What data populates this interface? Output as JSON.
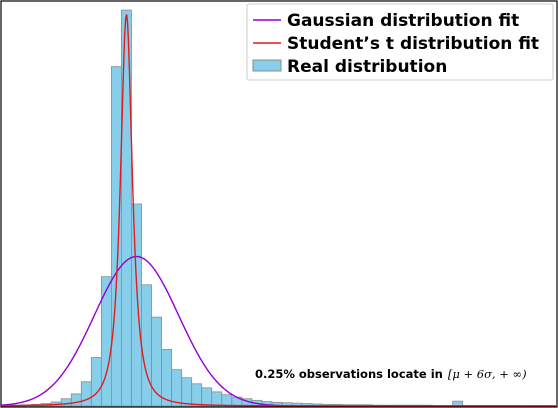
{
  "chart_data": {
    "type": "bar",
    "title": "",
    "xlabel": "",
    "ylabel": "",
    "grid": false,
    "legend_placement": "top-right",
    "colors": {
      "bar_fill": "#87ceeb",
      "bar_edge": "#8c8c8c",
      "gaussian": "#9400d3",
      "student_t": "#e41a1c",
      "frame": "#000000"
    },
    "legend": [
      {
        "key": "gaussian",
        "label": "Gaussian distribution fit"
      },
      {
        "key": "student_t",
        "label": "Student’s t distribution fit"
      },
      {
        "key": "real",
        "label": "Real distribution"
      }
    ],
    "x_range": [
      -6.2,
      21.4
    ],
    "y_range": [
      0,
      1.0
    ],
    "bin_width": 0.5,
    "bins": [
      {
        "x": -6.0,
        "y": 0.002
      },
      {
        "x": -5.5,
        "y": 0.002
      },
      {
        "x": -5.0,
        "y": 0.003
      },
      {
        "x": -4.5,
        "y": 0.004
      },
      {
        "x": -4.0,
        "y": 0.006
      },
      {
        "x": -3.5,
        "y": 0.01
      },
      {
        "x": -3.0,
        "y": 0.018
      },
      {
        "x": -2.5,
        "y": 0.03
      },
      {
        "x": -2.0,
        "y": 0.06
      },
      {
        "x": -1.5,
        "y": 0.12
      },
      {
        "x": -1.0,
        "y": 0.32
      },
      {
        "x": -0.5,
        "y": 0.84
      },
      {
        "x": 0.0,
        "y": 0.98
      },
      {
        "x": 0.5,
        "y": 0.5
      },
      {
        "x": 1.0,
        "y": 0.3
      },
      {
        "x": 1.5,
        "y": 0.22
      },
      {
        "x": 2.0,
        "y": 0.14
      },
      {
        "x": 2.5,
        "y": 0.09
      },
      {
        "x": 3.0,
        "y": 0.07
      },
      {
        "x": 3.5,
        "y": 0.055
      },
      {
        "x": 4.0,
        "y": 0.045
      },
      {
        "x": 4.5,
        "y": 0.035
      },
      {
        "x": 5.0,
        "y": 0.028
      },
      {
        "x": 5.5,
        "y": 0.022
      },
      {
        "x": 6.0,
        "y": 0.018
      },
      {
        "x": 6.5,
        "y": 0.014
      },
      {
        "x": 7.0,
        "y": 0.011
      },
      {
        "x": 7.5,
        "y": 0.009
      },
      {
        "x": 8.0,
        "y": 0.008
      },
      {
        "x": 8.5,
        "y": 0.007
      },
      {
        "x": 9.0,
        "y": 0.006
      },
      {
        "x": 9.5,
        "y": 0.005
      },
      {
        "x": 10.0,
        "y": 0.004
      },
      {
        "x": 10.5,
        "y": 0.004
      },
      {
        "x": 11.0,
        "y": 0.003
      },
      {
        "x": 11.5,
        "y": 0.003
      },
      {
        "x": 12.0,
        "y": 0.003
      },
      {
        "x": 12.5,
        "y": 0.002
      },
      {
        "x": 13.0,
        "y": 0.002
      },
      {
        "x": 13.5,
        "y": 0.002
      },
      {
        "x": 14.0,
        "y": 0.002
      },
      {
        "x": 14.5,
        "y": 0.002
      },
      {
        "x": 15.0,
        "y": 0.002
      },
      {
        "x": 15.5,
        "y": 0.001
      },
      {
        "x": 16.0,
        "y": 0.001
      },
      {
        "x": 16.5,
        "y": 0.012
      },
      {
        "x": 17.0,
        "y": 0.001
      },
      {
        "x": 17.5,
        "y": 0.001
      },
      {
        "x": 18.0,
        "y": 0.001
      },
      {
        "x": 18.5,
        "y": 0.001
      },
      {
        "x": 19.0,
        "y": 0.001
      },
      {
        "x": 19.5,
        "y": 0.001
      }
    ],
    "gaussian_fit": {
      "mu": 0.5,
      "sigma": 2.1,
      "peak": 0.37
    },
    "student_t_fit": {
      "loc": 0.0,
      "scale": 0.33,
      "df": 1.6,
      "peak": 0.97
    },
    "annotation": {
      "bold_text": "0.25% observations locate in",
      "math_text": "[μ + 6σ, + ∞)"
    }
  }
}
